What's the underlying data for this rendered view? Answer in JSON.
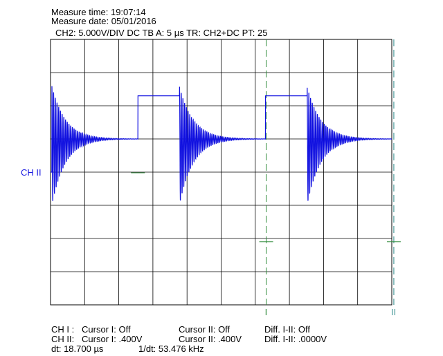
{
  "header": {
    "measure_time": "Measure time: 19:07:14",
    "measure_date": "Measure date: 05/01/2016",
    "settings": "CH2: 5.000V/DIV DC   TB A: 5 µs   TR: CH2+DC   PT: 25"
  },
  "channel_label": "CH II",
  "cursor_labels": {
    "one": "I",
    "two": "II"
  },
  "footer": {
    "row1": {
      "ch": "CH I :",
      "c1": "Cursor I: Off",
      "c2": "Cursor II: Off",
      "diff": "Diff. I-II: Off"
    },
    "row2": {
      "ch": "CH II:",
      "c1": "Cursor I: .400V",
      "c2": "Cursor II: .400V",
      "diff": "Diff. I-II: .0000V"
    },
    "row3": {
      "dt": "dt: 18.700 µs",
      "inv": "1/dt: 53.476 kHz"
    }
  },
  "colors": {
    "trace": "#1010e0",
    "grid": "#000000",
    "cursor": "#2e8b3a",
    "cursor2": "#4a9a9a",
    "channel_label": "#1a1ae0"
  },
  "chart_data": {
    "type": "line",
    "grid": {
      "divisions_x": 10,
      "divisions_y": 8
    },
    "time_per_div_us": 5,
    "volts_per_div": 5,
    "ground_level_div": 4,
    "period_us": 18.7,
    "first_rising_edge_us": 0.2,
    "pulse_high_div": 2.3,
    "ring_settle_div": 1.0,
    "ring_start_div": 1.8,
    "ring_freq_mhz": 4.0,
    "ring_decay_us": 2.0,
    "high_duration_us": 6.1,
    "cursor_1_us": 31.6,
    "cursor_2_us": 50.3,
    "cursor_level_div": 1.9,
    "series": [
      {
        "name": "CH2"
      }
    ]
  }
}
